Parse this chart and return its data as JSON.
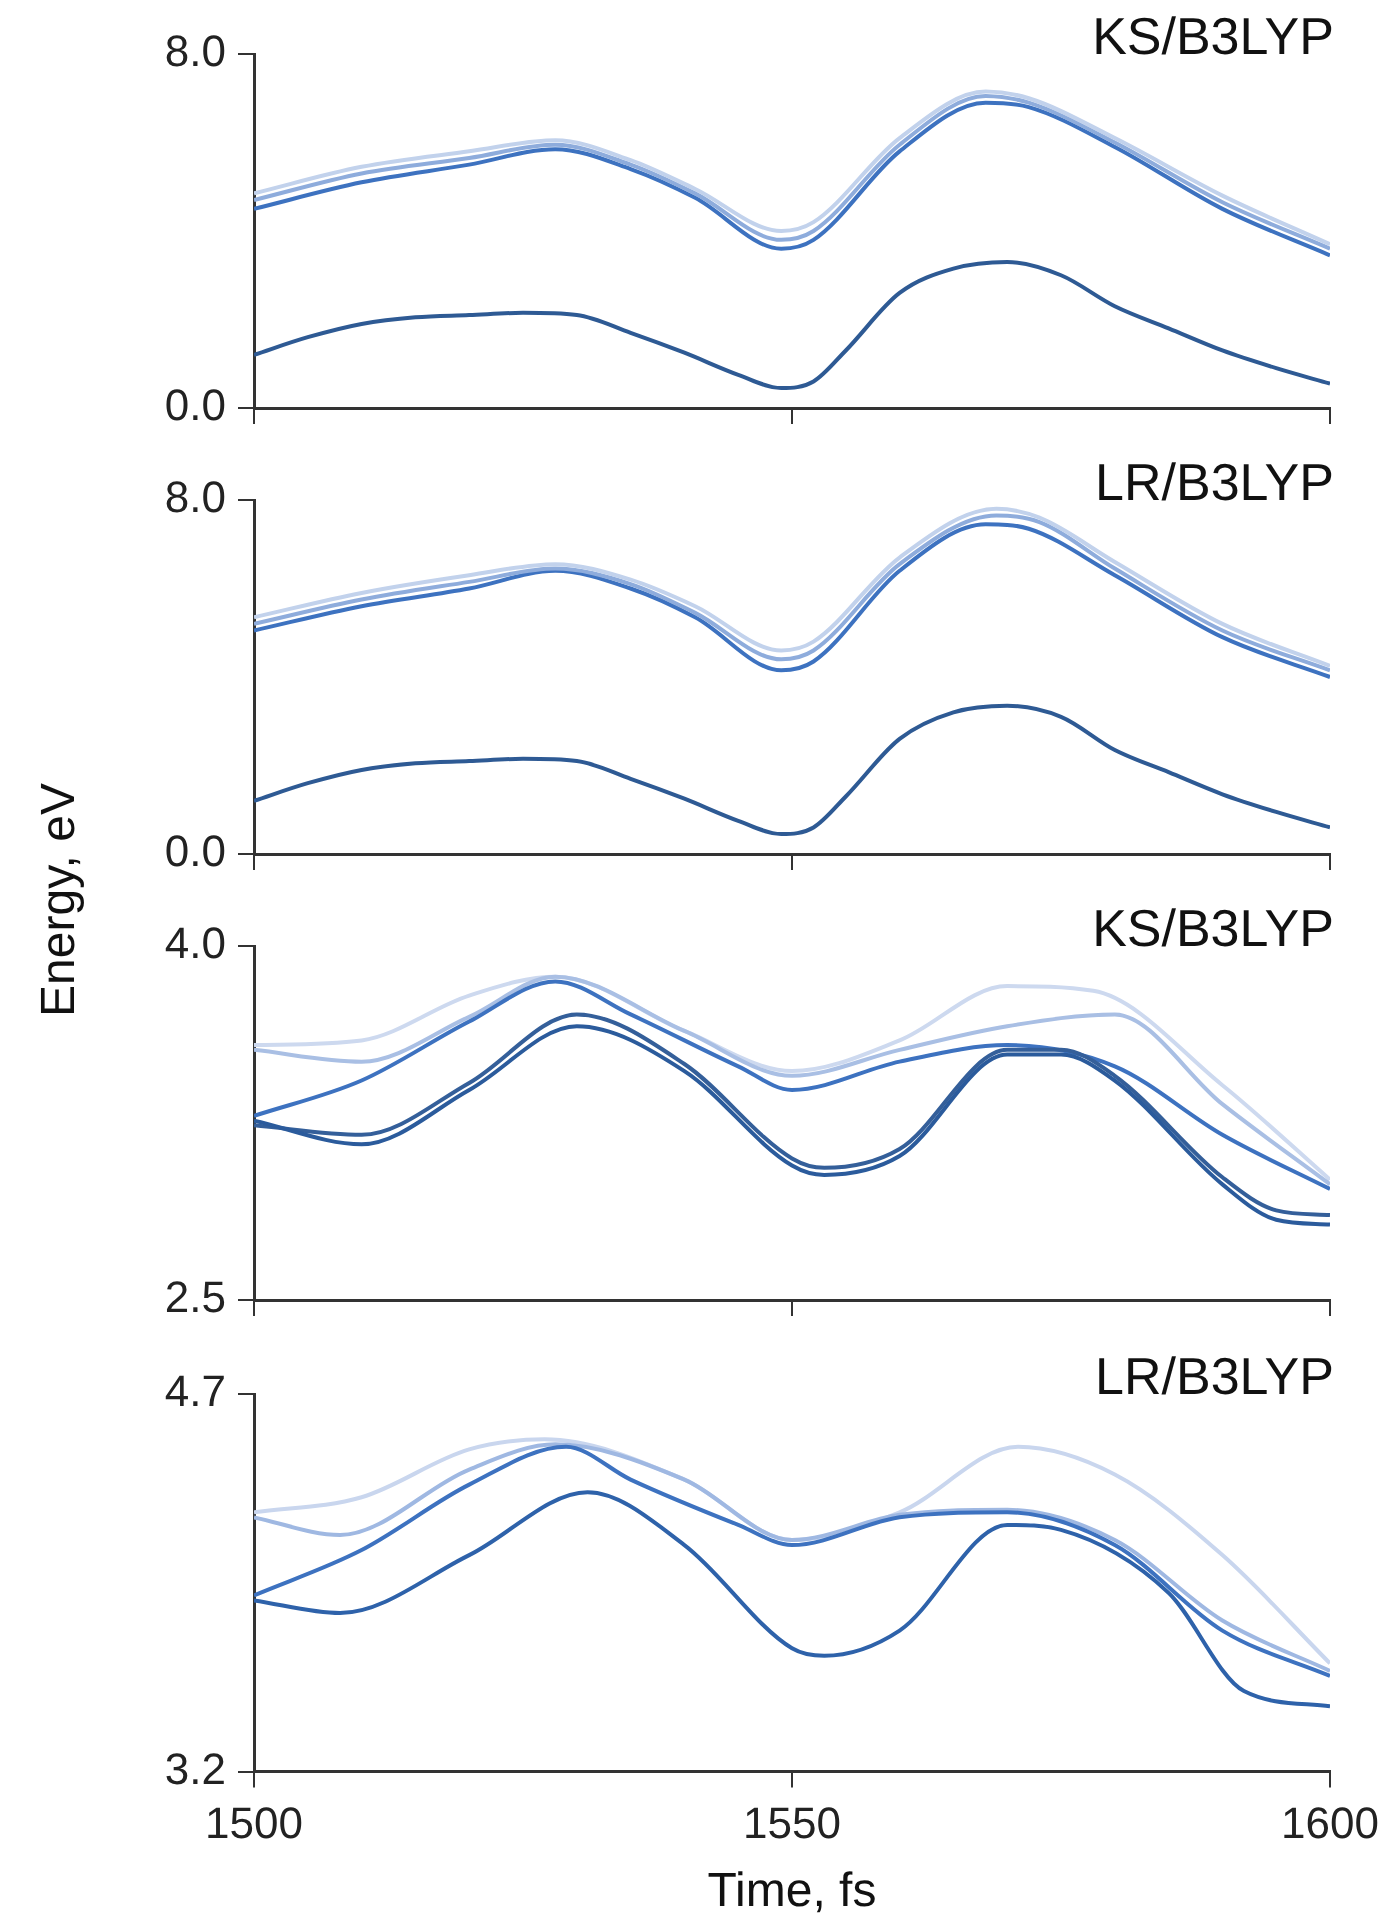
{
  "chart_data": [
    {
      "type": "line",
      "title": "KS/B3LYP",
      "xlim": [
        1500,
        1600
      ],
      "xticks": [
        1500,
        1550,
        1600
      ],
      "ylim": [
        0,
        8
      ],
      "yticks": [
        {
          "value": 0,
          "label": "0.0"
        },
        {
          "value": 8,
          "label": "8.0"
        }
      ],
      "tick_labels": "y",
      "series": [
        {
          "color": "#2e5a94",
          "x": [
            1500,
            1505,
            1510,
            1515,
            1520,
            1525,
            1530,
            1535,
            1540,
            1545,
            1549,
            1552,
            1555,
            1560,
            1565,
            1570,
            1575,
            1580,
            1585,
            1590,
            1595,
            1600
          ],
          "values": [
            1.2,
            1.6,
            1.9,
            2.05,
            2.1,
            2.15,
            2.1,
            1.7,
            1.25,
            0.75,
            0.45,
            0.6,
            1.3,
            2.6,
            3.15,
            3.3,
            3.0,
            2.3,
            1.8,
            1.3,
            0.9,
            0.55
          ]
        },
        {
          "color": "#c2d2ec",
          "x": [
            1500,
            1510,
            1520,
            1528,
            1535,
            1541,
            1549,
            1552,
            1560,
            1568,
            1572,
            1580,
            1590,
            1600
          ],
          "values": [
            4.85,
            5.45,
            5.8,
            6.05,
            5.6,
            4.95,
            4.0,
            4.2,
            6.1,
            7.15,
            7.0,
            6.1,
            4.8,
            3.7
          ]
        },
        {
          "color": "#8eacdc",
          "x": [
            1500,
            1510,
            1520,
            1528,
            1535,
            1541,
            1549,
            1552,
            1560,
            1568,
            1572,
            1580,
            1590,
            1600
          ],
          "values": [
            4.7,
            5.3,
            5.65,
            5.95,
            5.5,
            4.85,
            3.8,
            4.0,
            5.95,
            7.05,
            6.9,
            6.0,
            4.65,
            3.6
          ]
        },
        {
          "color": "#3d72c0",
          "x": [
            1500,
            1510,
            1520,
            1528,
            1535,
            1541,
            1549,
            1552,
            1560,
            1568,
            1572,
            1580,
            1590,
            1600
          ],
          "values": [
            4.5,
            5.1,
            5.5,
            5.85,
            5.4,
            4.75,
            3.6,
            3.8,
            5.8,
            6.9,
            6.8,
            5.9,
            4.5,
            3.45
          ]
        }
      ]
    },
    {
      "type": "line",
      "title": "LR/B3LYP",
      "xlim": [
        1500,
        1600
      ],
      "xticks": [
        1500,
        1550,
        1600
      ],
      "ylim": [
        0,
        8
      ],
      "yticks": [
        {
          "value": 0,
          "label": "0.0"
        },
        {
          "value": 8,
          "label": "8.0"
        }
      ],
      "tick_labels": "y",
      "series": [
        {
          "color": "#2e5a94",
          "x": [
            1500,
            1505,
            1510,
            1515,
            1520,
            1525,
            1530,
            1535,
            1540,
            1545,
            1549,
            1552,
            1555,
            1560,
            1565,
            1570,
            1575,
            1580,
            1585,
            1590,
            1595,
            1600
          ],
          "values": [
            1.2,
            1.6,
            1.9,
            2.05,
            2.1,
            2.15,
            2.1,
            1.7,
            1.25,
            0.75,
            0.45,
            0.6,
            1.3,
            2.6,
            3.2,
            3.35,
            3.1,
            2.35,
            1.85,
            1.35,
            0.95,
            0.6
          ]
        },
        {
          "color": "#c2d2ec",
          "x": [
            1500,
            1510,
            1520,
            1528,
            1535,
            1541,
            1549,
            1552,
            1560,
            1569,
            1573,
            1580,
            1590,
            1600
          ],
          "values": [
            5.35,
            5.9,
            6.3,
            6.55,
            6.2,
            5.6,
            4.6,
            4.8,
            6.7,
            7.8,
            7.6,
            6.6,
            5.2,
            4.25
          ]
        },
        {
          "color": "#8eacdc",
          "x": [
            1500,
            1510,
            1520,
            1528,
            1535,
            1541,
            1549,
            1552,
            1560,
            1569,
            1573,
            1580,
            1590,
            1600
          ],
          "values": [
            5.2,
            5.75,
            6.15,
            6.45,
            6.1,
            5.45,
            4.4,
            4.6,
            6.55,
            7.65,
            7.5,
            6.45,
            5.05,
            4.15
          ]
        },
        {
          "color": "#3d72c0",
          "x": [
            1500,
            1510,
            1520,
            1528,
            1535,
            1541,
            1549,
            1552,
            1560,
            1568,
            1572,
            1580,
            1590,
            1600
          ],
          "values": [
            5.05,
            5.6,
            6.0,
            6.4,
            6.0,
            5.35,
            4.15,
            4.35,
            6.4,
            7.45,
            7.35,
            6.3,
            4.9,
            4.0
          ]
        }
      ]
    },
    {
      "type": "line",
      "title": "KS/B3LYP",
      "ylabel": "Energy, eV",
      "xlim": [
        1500,
        1600
      ],
      "xticks": [
        1500,
        1550,
        1600
      ],
      "ylim": [
        2.5,
        4
      ],
      "yticks": [
        {
          "value": 2.5,
          "label": "2.5"
        },
        {
          "value": 4,
          "label": "4.0"
        }
      ],
      "tick_labels": "y",
      "series": [
        {
          "color": "#2b5b9c",
          "x": [
            1500,
            1510,
            1520,
            1530,
            1540,
            1550,
            1553,
            1560,
            1570,
            1575,
            1580,
            1590,
            1595,
            1600
          ],
          "values": [
            3.26,
            3.16,
            3.39,
            3.66,
            3.47,
            3.07,
            3.03,
            3.11,
            3.54,
            3.54,
            3.43,
            2.99,
            2.84,
            2.82
          ]
        },
        {
          "color": "#345f9a",
          "x": [
            1500,
            1510,
            1520,
            1530,
            1540,
            1550,
            1553,
            1560,
            1570,
            1575,
            1580,
            1590,
            1595,
            1600
          ],
          "values": [
            3.24,
            3.2,
            3.42,
            3.71,
            3.5,
            3.1,
            3.06,
            3.14,
            3.56,
            3.56,
            3.45,
            3.02,
            2.88,
            2.86
          ]
        },
        {
          "color": "#3d72c0",
          "x": [
            1500,
            1510,
            1520,
            1528,
            1535,
            1545,
            1550,
            1560,
            1570,
            1580,
            1590,
            1600
          ],
          "values": [
            3.28,
            3.43,
            3.68,
            3.85,
            3.71,
            3.49,
            3.39,
            3.51,
            3.58,
            3.49,
            3.2,
            2.97
          ]
        },
        {
          "color": "#a9bfe4",
          "x": [
            1500,
            1510,
            1520,
            1528,
            1540,
            1550,
            1560,
            1570,
            1580,
            1590,
            1600
          ],
          "values": [
            3.56,
            3.51,
            3.7,
            3.87,
            3.64,
            3.45,
            3.56,
            3.66,
            3.71,
            3.33,
            2.99
          ]
        },
        {
          "color": "#cdd9ef",
          "x": [
            1500,
            1510,
            1520,
            1528,
            1540,
            1550,
            1560,
            1570,
            1578,
            1590,
            1600
          ],
          "values": [
            3.58,
            3.6,
            3.79,
            3.87,
            3.64,
            3.47,
            3.6,
            3.83,
            3.81,
            3.41,
            3.01
          ]
        }
      ]
    },
    {
      "type": "line",
      "title": "LR/B3LYP",
      "xlabel": "Time, fs",
      "xlim": [
        1500,
        1600
      ],
      "xticks": [
        1500,
        1550,
        1600
      ],
      "ylim": [
        3.2,
        4.7
      ],
      "yticks": [
        {
          "value": 3.2,
          "label": "3.2"
        },
        {
          "value": 4.7,
          "label": "4.7"
        }
      ],
      "series": [
        {
          "color": "#2e62aa",
          "x": [
            1500,
            1508,
            1520,
            1531,
            1540,
            1550,
            1553,
            1560,
            1570,
            1575,
            1585,
            1592,
            1600
          ],
          "values": [
            3.88,
            3.83,
            4.06,
            4.31,
            4.1,
            3.69,
            3.66,
            3.76,
            4.18,
            4.16,
            3.91,
            3.52,
            3.46
          ]
        },
        {
          "color": "#3d72c0",
          "x": [
            1500,
            1510,
            1520,
            1529,
            1535,
            1545,
            1550,
            1560,
            1570,
            1580,
            1590,
            1600
          ],
          "values": [
            3.9,
            4.08,
            4.34,
            4.49,
            4.36,
            4.18,
            4.1,
            4.21,
            4.23,
            4.1,
            3.76,
            3.58
          ]
        },
        {
          "color": "#9fb8e2",
          "x": [
            1500,
            1508,
            1520,
            1528,
            1540,
            1550,
            1560,
            1570,
            1580,
            1590,
            1600
          ],
          "values": [
            4.21,
            4.14,
            4.4,
            4.5,
            4.36,
            4.12,
            4.22,
            4.24,
            4.12,
            3.8,
            3.6
          ]
        },
        {
          "color": "#c9d6ee",
          "x": [
            1500,
            1510,
            1520,
            1527,
            1540,
            1550,
            1560,
            1571,
            1580,
            1590,
            1600
          ],
          "values": [
            4.23,
            4.29,
            4.48,
            4.52,
            4.36,
            4.12,
            4.23,
            4.49,
            4.38,
            4.06,
            3.63
          ]
        }
      ]
    }
  ]
}
